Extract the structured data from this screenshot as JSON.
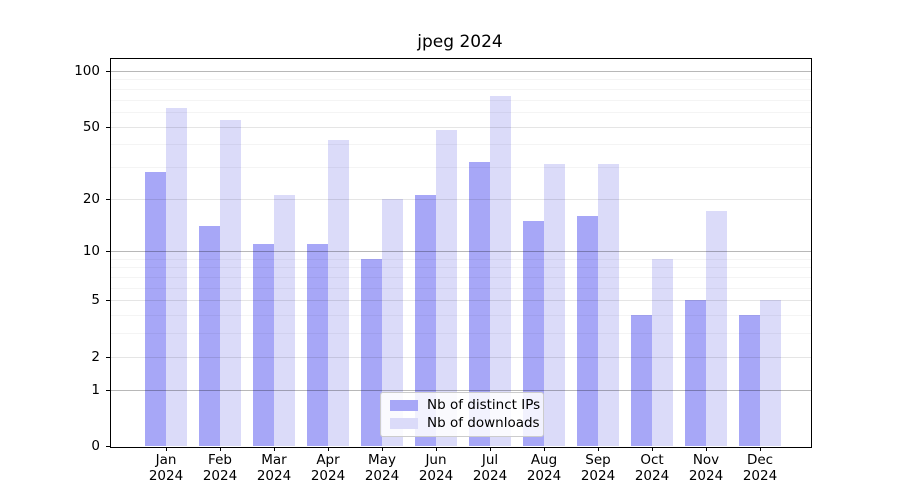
{
  "title": "jpeg 2024",
  "chart_data": {
    "type": "bar",
    "title": "jpeg 2024",
    "categories": [
      "Jan",
      "Feb",
      "Mar",
      "Apr",
      "May",
      "Jun",
      "Jul",
      "Aug",
      "Sep",
      "Oct",
      "Nov",
      "Dec"
    ],
    "category_year": "2024",
    "series": [
      {
        "name": "Nb of distinct IPs",
        "color": "#a7a7f7",
        "values": [
          28,
          14,
          11,
          11,
          9,
          21,
          32,
          15,
          16,
          4,
          5,
          4
        ]
      },
      {
        "name": "Nb of downloads",
        "color": "#dbdbf9",
        "values": [
          63,
          54,
          21,
          42,
          20,
          48,
          73,
          31,
          31,
          9,
          17,
          5
        ]
      }
    ],
    "y_scale": "log(1+x)",
    "y_axis_ticks": [
      0,
      1,
      2,
      5,
      10,
      20,
      50,
      100
    ],
    "y_gridlines_emphasized": [
      1,
      10,
      100
    ],
    "y_minor_gridlines": [
      3,
      4,
      6,
      7,
      8,
      9,
      30,
      40,
      60,
      70,
      80,
      90
    ],
    "ylim": [
      0,
      117
    ],
    "grid": "on",
    "legend_position": "lower center",
    "axis_color": "#000000",
    "background_color": "#ffffff"
  }
}
